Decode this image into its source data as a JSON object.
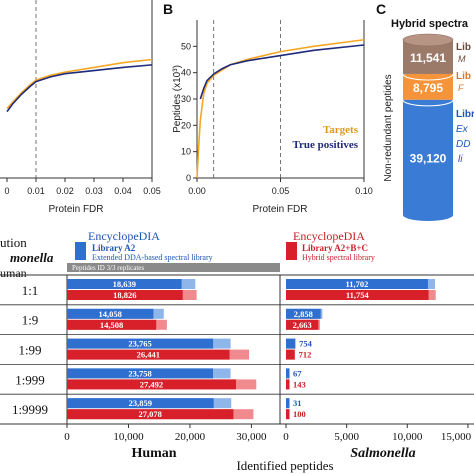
{
  "panels": {
    "A": "",
    "B": "B",
    "C": "C"
  },
  "chart_data": [
    {
      "id": "panel-a",
      "type": "line",
      "xlabel": "Protein FDR",
      "xticks": [
        "0",
        "0.01",
        "0.02",
        "0.03",
        "0.04",
        "0.05"
      ],
      "xlim": [
        0,
        0.05
      ],
      "ylim": [
        0,
        50
      ],
      "vline": 0.01,
      "series": [
        {
          "color": "#f5a623",
          "x": [
            0,
            0.002,
            0.005,
            0.008,
            0.01,
            0.015,
            0.02,
            0.03,
            0.04,
            0.05
          ],
          "y": [
            22,
            24,
            27,
            29.5,
            31,
            32.5,
            33.5,
            35,
            36.5,
            37.5
          ]
        },
        {
          "color": "#1f2a7a",
          "x": [
            0,
            0.002,
            0.005,
            0.008,
            0.01,
            0.015,
            0.02,
            0.03,
            0.04,
            0.05
          ],
          "y": [
            21,
            23.5,
            26.5,
            29,
            30.5,
            32,
            33,
            34,
            35,
            35.8
          ]
        }
      ]
    },
    {
      "id": "panel-b",
      "type": "line",
      "xlabel": "Protein FDR",
      "ylabel": "Peptides (x10³)",
      "xticks": [
        "0.00",
        "0.05",
        "0.10"
      ],
      "yticks": [
        "0",
        "10",
        "20",
        "30",
        "40",
        "50"
      ],
      "xlim": [
        0,
        0.1
      ],
      "ylim": [
        0,
        60
      ],
      "vlines": [
        0.01,
        0.05
      ],
      "series": [
        {
          "name": "Targets",
          "color": "#f5a623",
          "x": [
            0,
            0.001,
            0.002,
            0.004,
            0.006,
            0.01,
            0.015,
            0.02,
            0.03,
            0.05,
            0.07,
            0.1
          ],
          "y": [
            0,
            12,
            22,
            32,
            36,
            39,
            41,
            43,
            45,
            48,
            50,
            52.5
          ]
        },
        {
          "name": "True positives",
          "color": "#1f2a7a",
          "x": [
            0.002,
            0.004,
            0.006,
            0.01,
            0.015,
            0.02,
            0.03,
            0.05,
            0.07,
            0.1
          ],
          "y": [
            30,
            34,
            37,
            39.5,
            41.5,
            43,
            44.5,
            46.5,
            48.5,
            50.5
          ]
        }
      ],
      "legend_placement": "bottom-right"
    },
    {
      "id": "panel-c",
      "type": "stacked-bar",
      "title": "Hybrid spectra",
      "ylabel": "Non-redundant peptides",
      "segments": [
        {
          "value": 11541,
          "label": "11,541",
          "color": "#9c7a6a",
          "side_label": "Lib",
          "side_sub": "M"
        },
        {
          "value": 8795,
          "label": "8,795",
          "color": "#f5943a",
          "side_label": "Lib",
          "side_sub": "F"
        },
        {
          "value": 39120,
          "label": "39,120",
          "color": "#3a7bd5",
          "side_label": "Libra",
          "side_sub": "Ex",
          "side_sub2": "DD",
          "side_sub3": "li"
        }
      ]
    },
    {
      "id": "panel-d",
      "type": "bar",
      "row_header": "ution",
      "row_header2": "monella",
      "row_header3": "uman",
      "left_title": "EncyclopeDIA",
      "left_lib": "Library A2",
      "left_desc": "Extended DDA-based spectral library",
      "right_title": "EncyclopeDIA",
      "right_lib": "Library A2+B+C",
      "right_desc": "Hybrid spectral library",
      "replicates_label": "Peptides ID 3/3 replicates",
      "xlabel": "Identified peptides",
      "left_axis_title": "Human",
      "right_axis_title": "Salmonella",
      "left_xticks": [
        "0",
        "10,000",
        "20,000",
        "30,000"
      ],
      "right_xticks": [
        "0",
        "5,000",
        "10,000",
        "15,000"
      ],
      "left_xlim": [
        0,
        34000
      ],
      "right_xlim": [
        0,
        15500
      ],
      "categories": [
        "1:1",
        "1:9",
        "1:99",
        "1:999",
        "1:9999"
      ],
      "human": [
        {
          "blue": 18639,
          "blue_label": "18,639",
          "red": 18826,
          "red_label": "18,826"
        },
        {
          "blue": 14058,
          "blue_label": "14,058",
          "red": 14508,
          "red_label": "14,508"
        },
        {
          "blue": 23765,
          "blue_label": "23,765",
          "red": 26441,
          "red_label": "26,441"
        },
        {
          "blue": 23758,
          "blue_label": "23,758",
          "red": 27492,
          "red_label": "27,492"
        },
        {
          "blue": 23859,
          "blue_label": "23,859",
          "red": 27078,
          "red_label": "27,078"
        }
      ],
      "salmonella": [
        {
          "blue": 11702,
          "blue_label": "11,702",
          "red": 11754,
          "red_label": "11,754"
        },
        {
          "blue": 2858,
          "blue_label": "2,858",
          "red": 2663,
          "red_label": "2,663"
        },
        {
          "blue": 754,
          "blue_label": "754",
          "red": 712,
          "red_label": "712"
        },
        {
          "blue": 67,
          "blue_label": "67",
          "red": 143,
          "red_label": "143"
        },
        {
          "blue": 31,
          "blue_label": "31",
          "red": 100,
          "red_label": "100"
        }
      ],
      "colors": {
        "blue": "#2f6fd0",
        "light_blue": "#8fb6ea",
        "red": "#d8202a",
        "light_red": "#f08a8f"
      }
    }
  ]
}
